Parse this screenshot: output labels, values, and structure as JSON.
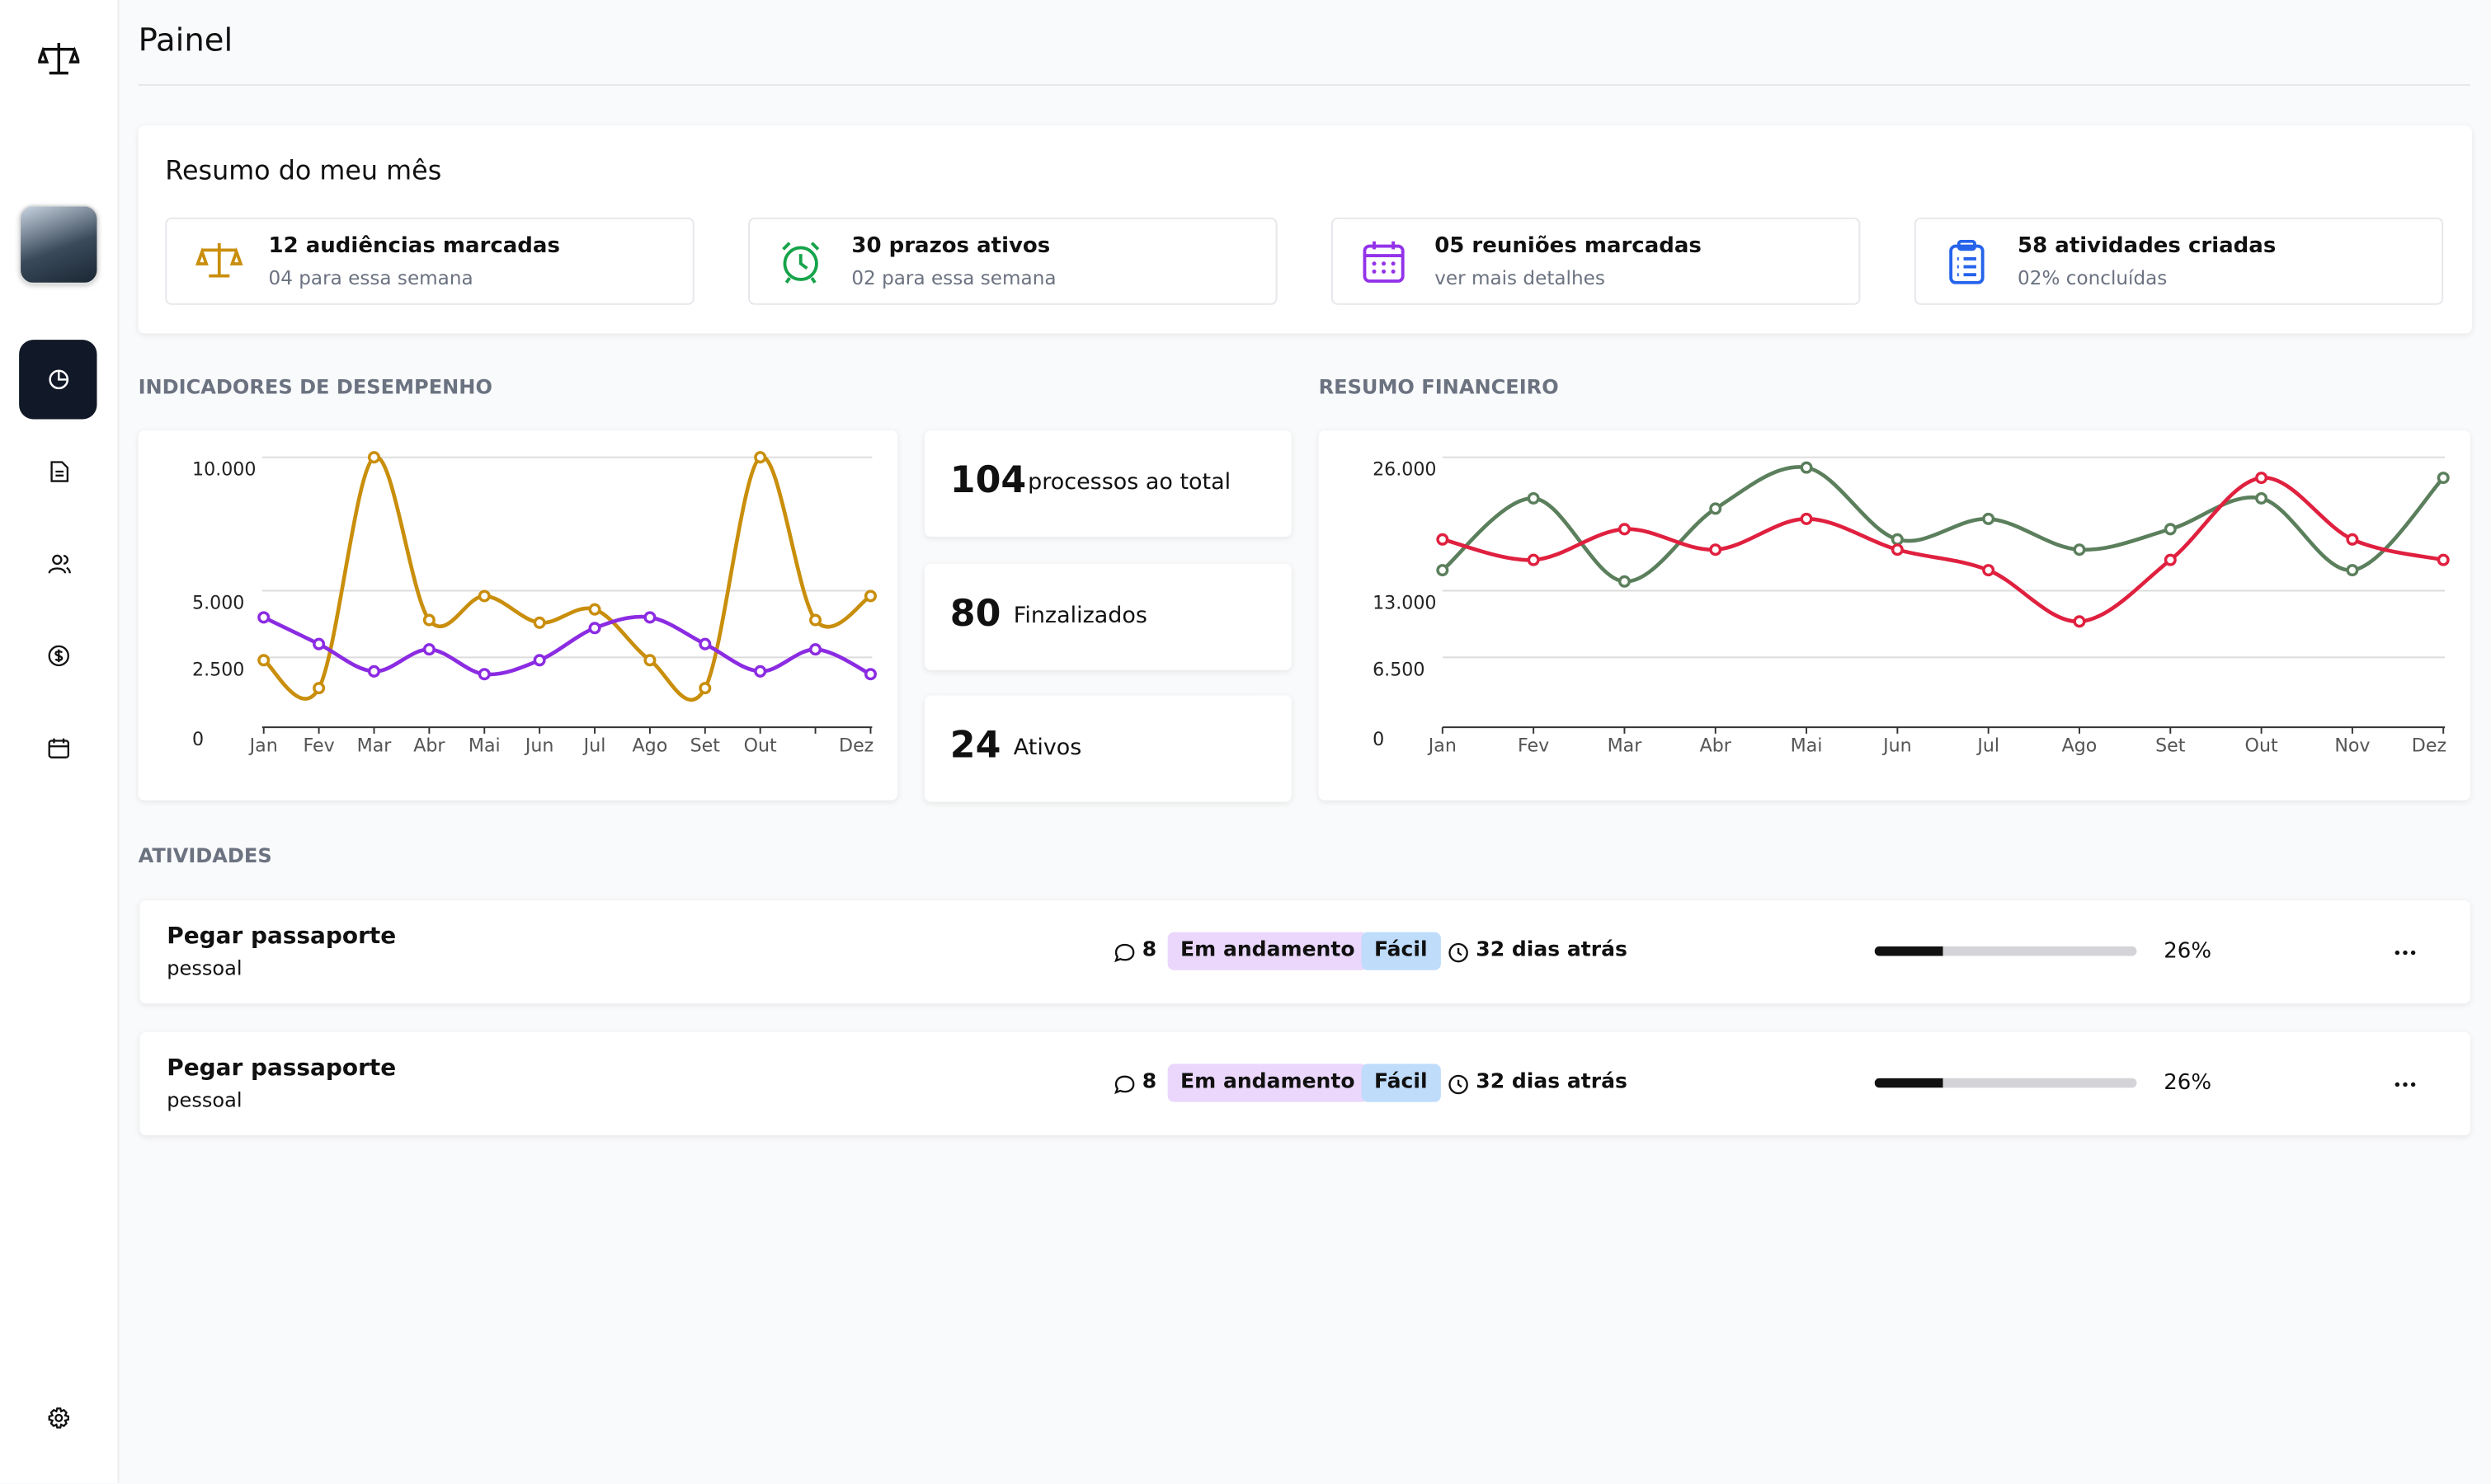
{
  "header": {
    "title": "Painel"
  },
  "summary": {
    "title": "Resumo do meu mês",
    "cards": [
      {
        "title": "12 audiências marcadas",
        "subtitle": "04 para essa semana"
      },
      {
        "title": "30 prazos ativos",
        "subtitle": "02 para essa semana"
      },
      {
        "title": "05 reuniões marcadas",
        "subtitle": "ver mais detalhes"
      },
      {
        "title": "58 atividades criadas",
        "subtitle": "02% concluídas"
      }
    ]
  },
  "stats": [
    {
      "value": 104,
      "label": "processos ao total"
    },
    {
      "value": 80,
      "label": "Finzalizados"
    },
    {
      "value": 24,
      "label": "Ativos"
    }
  ],
  "chart_data": [
    {
      "type": "line",
      "title": "INDICADORES DE DESEMPENHO",
      "categories": [
        "Jan",
        "Fev",
        "Mar",
        "Abr",
        "Mai",
        "Jun",
        "Jul",
        "Ago",
        "Set",
        "Out",
        null,
        "Dez"
      ],
      "ylim": [
        0,
        10000
      ],
      "yticks": [
        0,
        {
          "value": 2500,
          "label": "2.500"
        },
        {
          "value": 5000,
          "label": "5.000"
        },
        {
          "value": 10000,
          "label": "10.000"
        }
      ],
      "grid": true,
      "smooth": true,
      "series": [
        {
          "color": "#c98e0b",
          "values": [
            2400,
            1400,
            10000,
            3900,
            4800,
            3800,
            4300,
            2400,
            1400,
            10000,
            3900,
            4800
          ]
        },
        {
          "color": "#8b2be2",
          "values": [
            4000,
            3000,
            2000,
            2800,
            1900,
            2400,
            3600,
            4000,
            3000,
            2000,
            2800,
            1900
          ]
        }
      ]
    },
    {
      "type": "line",
      "title": "RESUMO FINANCEIRO",
      "categories": [
        "Jan",
        "Fev",
        "Mar",
        "Abr",
        "Mai",
        "Jun",
        "Jul",
        "Ago",
        "Set",
        "Out",
        "Nov",
        "Dez"
      ],
      "ylim": [
        0,
        26000
      ],
      "yticks": [
        0,
        {
          "value": 6500,
          "label": "6.500"
        },
        {
          "value": 13000,
          "label": "13.000"
        },
        {
          "value": 26000,
          "label": "26.000"
        }
      ],
      "grid": true,
      "smooth": true,
      "series": [
        {
          "color": "#5b7f5c",
          "values": [
            15000,
            22000,
            13900,
            21000,
            25000,
            18000,
            20000,
            17000,
            19000,
            22000,
            15000,
            24000
          ]
        },
        {
          "color": "#e0203f",
          "values": [
            18000,
            16000,
            19000,
            17000,
            20000,
            17000,
            15000,
            10000,
            16000,
            24000,
            18000,
            16000
          ]
        }
      ]
    }
  ],
  "activities": {
    "title": "ATIVIDADES",
    "items": [
      {
        "title": "Pegar passaporte",
        "subtitle": "pessoal",
        "comments": 8,
        "status": "Em andamento",
        "difficulty": "Fácil",
        "time": "32 dias atrás",
        "progress": 26,
        "progress_label": "26%"
      },
      {
        "title": "Pegar passaporte",
        "subtitle": "pessoal",
        "comments": 8,
        "status": "Em andamento",
        "difficulty": "Fácil",
        "time": "32 dias atrás",
        "progress": 26,
        "progress_label": "26%"
      }
    ]
  }
}
